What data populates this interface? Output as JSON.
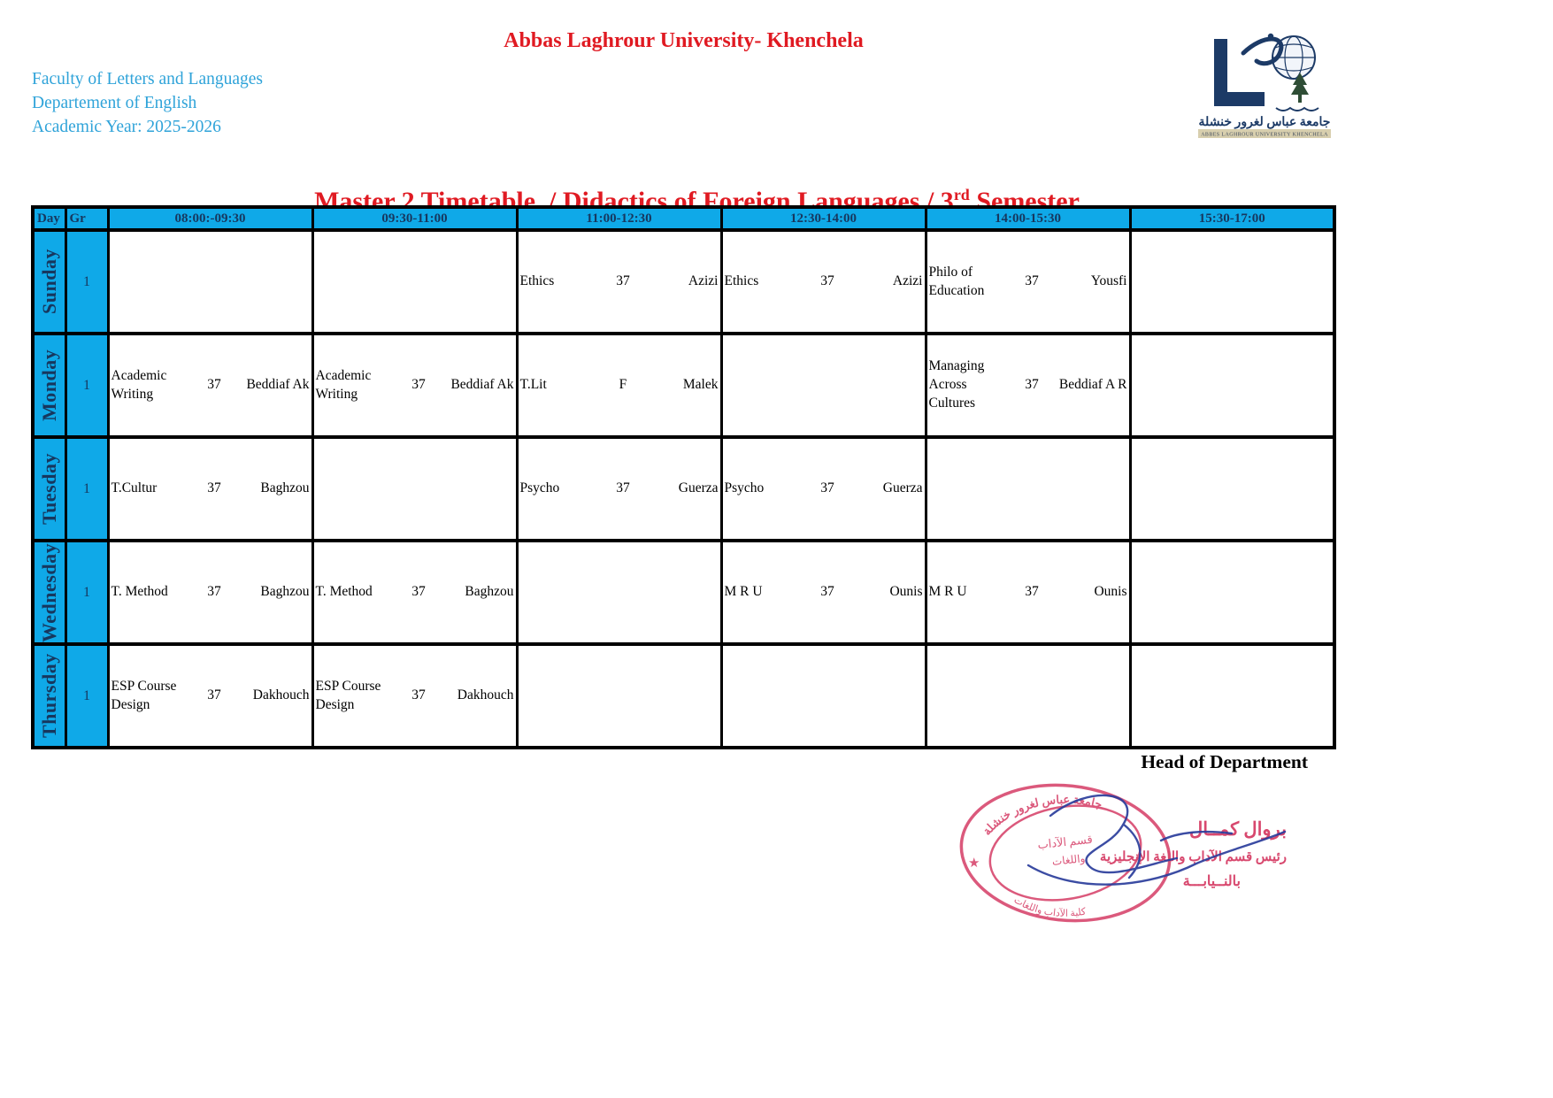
{
  "header": {
    "university_title": "Abbas Laghrour University- Khenchela",
    "faculty": "Faculty of Letters and Languages",
    "department": "Departement of English",
    "academic_year": "Academic Year: 2025-2026",
    "logo": {
      "arabic_name": "جامعة عباس لغرور خنشلة",
      "caption": "ABBES LAGHROUR UNIVERSITY KHENCHELA"
    }
  },
  "title": {
    "prefix": "Master 2 Timetable  / Didactics of Foreign Languages / 3",
    "superscript": "rd",
    "suffix": " Semester"
  },
  "table": {
    "day_header": "Day",
    "group_header": "Gr",
    "time_slots": [
      "08:00:-09:30",
      "09:30-11:00",
      "11:00-12:30",
      "12:30-14:00",
      "14:00-15:30",
      "15:30-17:00"
    ],
    "rows": [
      {
        "day": "Sunday",
        "group": "1",
        "cells": [
          null,
          null,
          {
            "course": "Ethics",
            "room": "37",
            "teacher": "Azizi"
          },
          {
            "course": "Ethics",
            "room": "37",
            "teacher": "Azizi"
          },
          {
            "course": "Philo of Education",
            "room": "37",
            "teacher": "Yousfi"
          },
          null
        ]
      },
      {
        "day": "Monday",
        "group": "1",
        "cells": [
          {
            "course": "Academic Writing",
            "room": "37",
            "teacher": "Beddiaf Ak"
          },
          {
            "course": "Academic Writing",
            "room": "37",
            "teacher": "Beddiaf Ak"
          },
          {
            "course": "T.Lit",
            "room": "F",
            "teacher": "Malek"
          },
          null,
          {
            "course": "Managing Across Cultures",
            "room": "37",
            "teacher": "Beddiaf A R"
          },
          null
        ]
      },
      {
        "day": "Tuesday",
        "group": "1",
        "cells": [
          {
            "course": "T.Cultur",
            "room": "37",
            "teacher": "Baghzou"
          },
          null,
          {
            "course": "Psycho",
            "room": "37",
            "teacher": "Guerza"
          },
          {
            "course": "Psycho",
            "room": "37",
            "teacher": "Guerza"
          },
          null,
          null
        ]
      },
      {
        "day": "Wednesday",
        "group": "1",
        "cells": [
          {
            "course": "T. Method",
            "room": "37",
            "teacher": "Baghzou"
          },
          {
            "course": "T. Method",
            "room": "37",
            "teacher": "Baghzou"
          },
          null,
          {
            "course": "M R U",
            "room": "37",
            "teacher": "Ounis"
          },
          {
            "course": "M R U",
            "room": "37",
            "teacher": "Ounis"
          },
          null
        ]
      },
      {
        "day": "Thursday",
        "group": "1",
        "cells": [
          {
            "course": "ESP Course Design",
            "room": "37",
            "teacher": "Dakhouch"
          },
          {
            "course": "ESP Course Design",
            "room": "37",
            "teacher": "Dakhouch"
          },
          null,
          null,
          null,
          null
        ]
      }
    ]
  },
  "footer": {
    "head_of_department": "Head of Department",
    "stamp": {
      "ring_text_top": "جامعة عباس لغرور خنشلة",
      "ring_text_bottom": "كلية الآداب واللغات",
      "inner_line_1": "قسم الآداب",
      "inner_line_2": "واللغات",
      "line_1": "بروال كمــال",
      "line_2": "رئيس قسم الآداب واللغة الإنجليزية",
      "line_3": "بالنــيابـــة"
    }
  },
  "colors": {
    "accent_red": "#e01a22",
    "info_blue": "#2fa3d9",
    "table_cyan": "#0fa9e8",
    "navy": "#17375e",
    "stamp_red": "#d8486e",
    "signature_blue": "#2b3d9c"
  }
}
